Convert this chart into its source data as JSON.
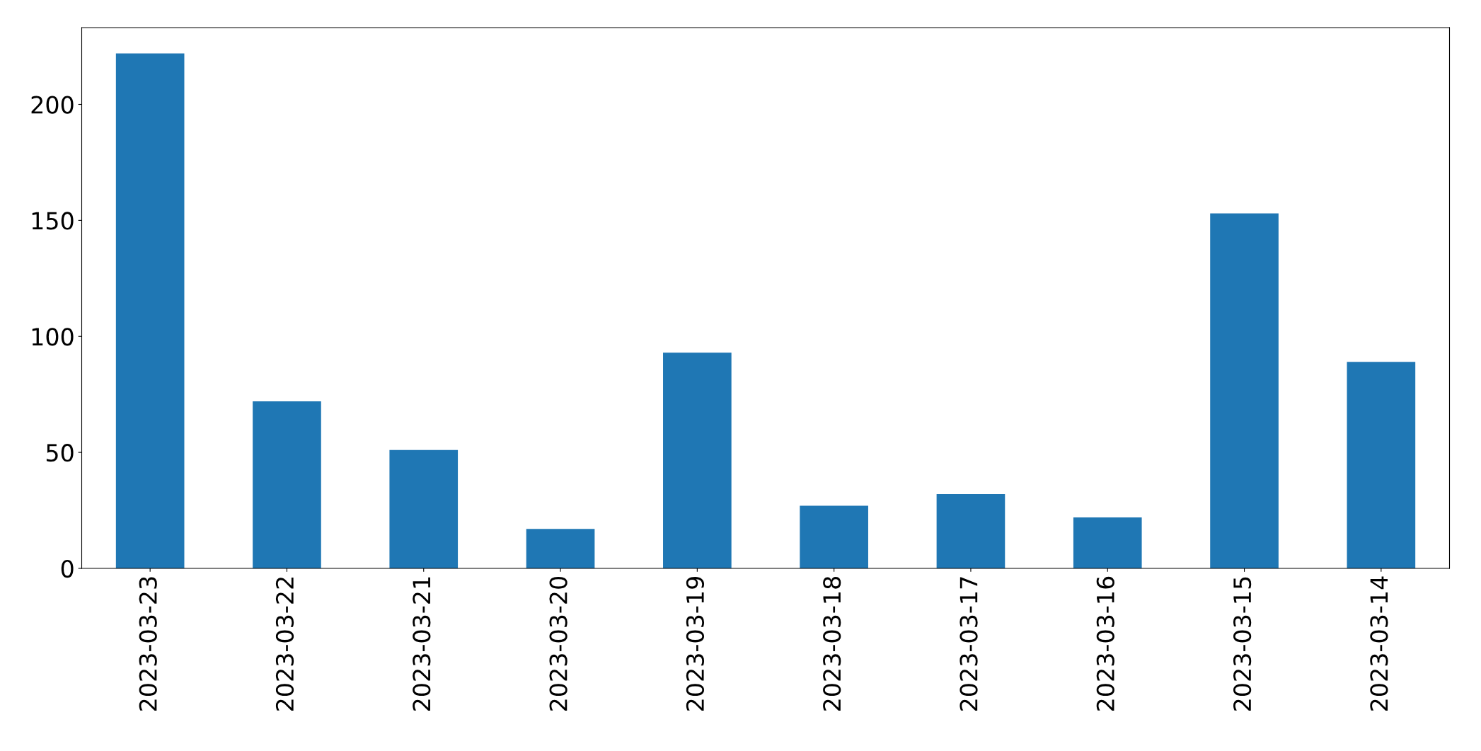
{
  "chart_data": {
    "type": "bar",
    "categories": [
      "2023-03-23",
      "2023-03-22",
      "2023-03-21",
      "2023-03-20",
      "2023-03-19",
      "2023-03-18",
      "2023-03-17",
      "2023-03-16",
      "2023-03-15",
      "2023-03-14"
    ],
    "values": [
      222,
      72,
      51,
      17,
      93,
      27,
      32,
      22,
      153,
      89
    ],
    "color": "#1f77b4",
    "ylim": [
      0,
      233.1
    ],
    "yticks": [
      0,
      50,
      100,
      150,
      200
    ],
    "grid": false,
    "legend": false
  }
}
